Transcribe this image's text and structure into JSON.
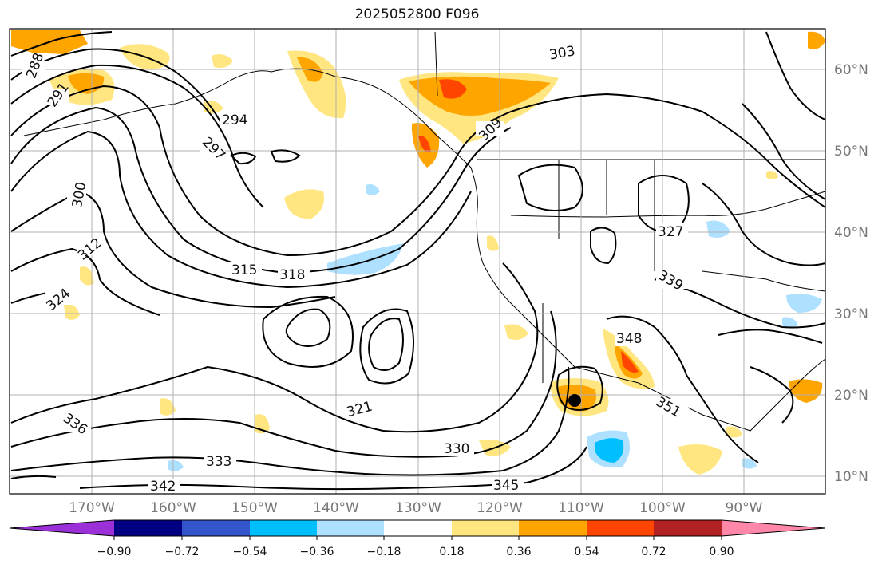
{
  "title": "2025052800 F096",
  "latitude_labels": [
    "60°N",
    "50°N",
    "40°N",
    "30°N",
    "20°N",
    "10°N"
  ],
  "longitude_labels": [
    "170°W",
    "160°W",
    "150°W",
    "140°W",
    "130°W",
    "120°W",
    "110°W",
    "100°W",
    "90°W"
  ],
  "colorbar": {
    "tick_labels": [
      "−0.90",
      "−0.72",
      "−0.54",
      "−0.36",
      "−0.18",
      "0.18",
      "0.36",
      "0.54",
      "0.72",
      "0.90"
    ],
    "colors": [
      "#9b30d9",
      "#000080",
      "#3355cc",
      "#00bfff",
      "#aee0ff",
      "#ffffff",
      "#ffe680",
      "#ffa500",
      "#ff4500",
      "#b22222",
      "#ff88aa"
    ]
  },
  "contour_labels": [
    "288",
    "291",
    "294",
    "297",
    "300",
    "303",
    "309",
    "312",
    "315",
    "318",
    "321",
    "324",
    "327",
    "330",
    "333",
    "336",
    "339",
    "342",
    "345",
    "348",
    "351"
  ],
  "colors": {
    "contour": "#000000",
    "grid": "#b0b0b0",
    "coast": "#000000",
    "positive_light": "#ffe680",
    "positive_mid": "#ffa500",
    "positive_strong": "#ff4500",
    "negative_light": "#aee0ff",
    "negative_mid": "#00bfff"
  }
}
